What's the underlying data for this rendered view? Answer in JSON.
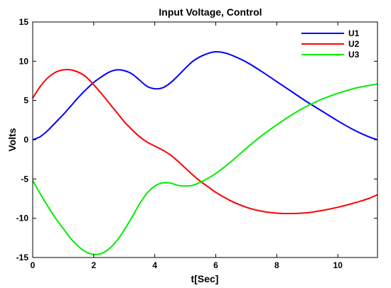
{
  "chart_data": {
    "type": "line",
    "title": "Input Voltage, Control",
    "xlabel": "t[Sec]",
    "ylabel": "Volts",
    "xlim": [
      0,
      11.3
    ],
    "ylim": [
      -15,
      15
    ],
    "xticks": [
      0,
      2,
      4,
      6,
      8,
      10
    ],
    "yticks": [
      -15,
      -10,
      -5,
      0,
      5,
      10,
      15
    ],
    "grid": false,
    "legend_position": "top-right",
    "series": [
      {
        "name": "U1",
        "color": "#0000ff",
        "x": [
          0,
          0.25,
          0.5,
          0.75,
          1.0,
          1.25,
          1.5,
          1.75,
          2.0,
          2.25,
          2.5,
          2.75,
          3.0,
          3.25,
          3.5,
          3.75,
          4.0,
          4.25,
          4.5,
          4.75,
          5.0,
          5.25,
          5.5,
          5.75,
          6.0,
          6.25,
          6.5,
          7.0,
          7.5,
          8.0,
          8.5,
          9.0,
          9.5,
          10.0,
          10.5,
          11.0,
          11.3
        ],
        "y": [
          0.0,
          0.4,
          1.2,
          2.2,
          3.2,
          4.3,
          5.4,
          6.4,
          7.3,
          8.0,
          8.6,
          8.9,
          8.8,
          8.4,
          7.6,
          6.8,
          6.5,
          6.6,
          7.2,
          8.1,
          9.1,
          10.0,
          10.6,
          11.0,
          11.2,
          11.1,
          10.8,
          9.9,
          8.7,
          7.4,
          6.1,
          4.8,
          3.6,
          2.4,
          1.3,
          0.4,
          0.0
        ]
      },
      {
        "name": "U2",
        "color": "#ff0000",
        "x": [
          0,
          0.25,
          0.5,
          0.75,
          1.0,
          1.25,
          1.5,
          1.75,
          2.0,
          2.25,
          2.5,
          2.75,
          3.0,
          3.25,
          3.5,
          3.75,
          4.0,
          4.25,
          4.5,
          4.75,
          5.0,
          5.25,
          5.5,
          5.75,
          6.0,
          6.5,
          7.0,
          7.5,
          8.0,
          8.5,
          9.0,
          9.5,
          10.0,
          10.5,
          11.0,
          11.3
        ],
        "y": [
          5.3,
          6.8,
          7.9,
          8.6,
          8.9,
          8.9,
          8.6,
          8.0,
          7.0,
          5.9,
          4.7,
          3.5,
          2.3,
          1.3,
          0.4,
          -0.3,
          -0.8,
          -1.3,
          -1.9,
          -2.7,
          -3.6,
          -4.5,
          -5.3,
          -6.0,
          -6.7,
          -7.8,
          -8.6,
          -9.1,
          -9.35,
          -9.4,
          -9.3,
          -9.0,
          -8.6,
          -8.1,
          -7.5,
          -7.0
        ]
      },
      {
        "name": "U3",
        "color": "#00ee00",
        "x": [
          0,
          0.25,
          0.5,
          0.75,
          1.0,
          1.25,
          1.5,
          1.75,
          2.0,
          2.25,
          2.5,
          2.75,
          3.0,
          3.25,
          3.5,
          3.75,
          4.0,
          4.25,
          4.5,
          4.75,
          5.0,
          5.25,
          5.5,
          5.75,
          6.0,
          6.5,
          7.0,
          7.5,
          8.0,
          8.5,
          9.0,
          9.5,
          10.0,
          10.5,
          11.0,
          11.3
        ],
        "y": [
          -5.2,
          -6.9,
          -8.5,
          -10.0,
          -11.3,
          -12.6,
          -13.6,
          -14.3,
          -14.6,
          -14.5,
          -13.9,
          -12.9,
          -11.5,
          -9.9,
          -8.2,
          -6.8,
          -5.9,
          -5.5,
          -5.5,
          -5.8,
          -5.9,
          -5.8,
          -5.4,
          -4.9,
          -4.3,
          -2.8,
          -1.1,
          0.5,
          1.9,
          3.2,
          4.3,
          5.2,
          5.9,
          6.5,
          6.9,
          7.1
        ]
      }
    ]
  }
}
